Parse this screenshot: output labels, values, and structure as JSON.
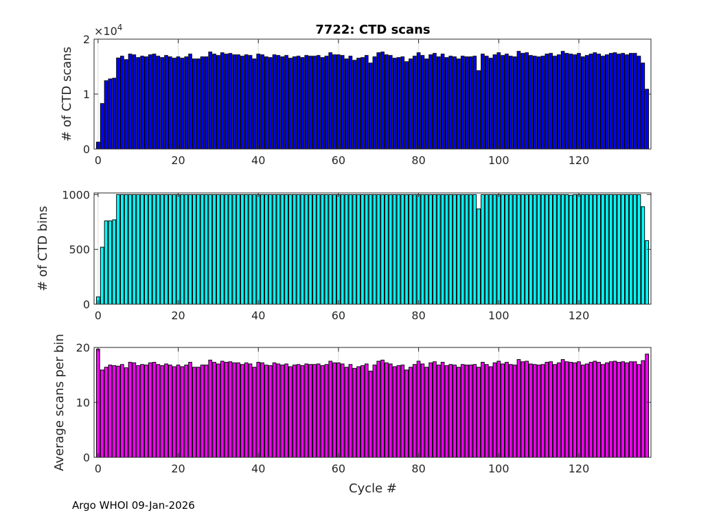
{
  "chart_data": [
    {
      "type": "bar",
      "title": "7722: CTD scans",
      "xlabel": "",
      "ylabel": "# of CTD scans",
      "y_exponent_label": "×10",
      "y_exponent": "4",
      "xlim": [
        -1,
        138
      ],
      "ylim": [
        0,
        20000
      ],
      "yticks": [
        0,
        10000,
        20000
      ],
      "ytick_labels": [
        "0",
        "1",
        "2"
      ],
      "xticks": [
        0,
        20,
        40,
        60,
        80,
        100,
        120
      ],
      "xtick_labels": [
        "0",
        "20",
        "40",
        "60",
        "80",
        "100",
        "120"
      ],
      "color": "#0000ff",
      "grid": true,
      "values": [
        1250,
        8280,
        12430,
        12760,
        12890,
        16570,
        16900,
        16280,
        17280,
        17150,
        16650,
        16900,
        16780,
        17150,
        17280,
        16900,
        16650,
        17030,
        16780,
        16530,
        16780,
        16530,
        16780,
        17280,
        16400,
        16400,
        16780,
        16780,
        17660,
        17280,
        17030,
        17530,
        17280,
        17400,
        17150,
        17150,
        16900,
        17150,
        17030,
        16400,
        17280,
        17150,
        16780,
        16650,
        17150,
        17030,
        16780,
        17030,
        16530,
        16780,
        16900,
        16650,
        17030,
        16900,
        16900,
        17030,
        16650,
        16900,
        17530,
        17150,
        17150,
        17030,
        16400,
        16900,
        16150,
        16530,
        16650,
        17030,
        15650,
        16780,
        17530,
        17660,
        17150,
        17030,
        16530,
        16650,
        16780,
        15900,
        16400,
        16900,
        17530,
        17030,
        16400,
        17150,
        17410,
        16780,
        17280,
        16650,
        16900,
        16780,
        16400,
        16900,
        16780,
        16780,
        16900,
        14270,
        17280,
        16900,
        16530,
        17150,
        17530,
        17030,
        17280,
        16900,
        16780,
        17780,
        17410,
        17530,
        17030,
        16900,
        16780,
        16900,
        17280,
        17410,
        16900,
        17150,
        17780,
        17410,
        17280,
        17150,
        17410,
        16780,
        17030,
        17280,
        17530,
        17280,
        16900,
        17150,
        17410,
        17530,
        17280,
        17410,
        17150,
        17410,
        17410,
        16900,
        15650,
        10880
      ]
    },
    {
      "type": "bar",
      "ylabel": "# of CTD bins",
      "xlim": [
        -1,
        138
      ],
      "ylim": [
        0,
        1015
      ],
      "yticks": [
        0,
        500,
        1000
      ],
      "ytick_labels": [
        "0",
        "500",
        "1000"
      ],
      "xticks": [
        0,
        20,
        40,
        60,
        80,
        100,
        120
      ],
      "xtick_labels": [
        "0",
        "20",
        "40",
        "60",
        "80",
        "100",
        "120"
      ],
      "color": "#00ffff",
      "grid": true,
      "values": [
        67,
        520,
        760,
        760,
        770,
        1000,
        1000,
        1000,
        1000,
        1000,
        1000,
        1000,
        1000,
        1000,
        1000,
        1000,
        1000,
        1000,
        1000,
        1000,
        1000,
        1000,
        1000,
        1000,
        1000,
        1000,
        1000,
        1000,
        1000,
        1000,
        1000,
        1000,
        1000,
        1000,
        1000,
        1000,
        1000,
        1000,
        1000,
        1000,
        1000,
        1000,
        1000,
        1000,
        1000,
        1000,
        1000,
        1000,
        1000,
        1000,
        1000,
        1000,
        1000,
        1000,
        1000,
        1000,
        1000,
        1000,
        1000,
        1000,
        1000,
        1000,
        1000,
        1000,
        1000,
        1000,
        1000,
        1000,
        1000,
        1000,
        1000,
        1000,
        1000,
        1000,
        1000,
        1000,
        1000,
        1000,
        1000,
        1000,
        1000,
        1000,
        1000,
        1000,
        1000,
        1000,
        1000,
        1000,
        1000,
        1000,
        1000,
        1000,
        1000,
        1000,
        1000,
        870,
        1000,
        1000,
        1000,
        1000,
        1000,
        1000,
        1000,
        1000,
        1000,
        1000,
        1000,
        1000,
        1000,
        1000,
        1000,
        1000,
        1000,
        1000,
        1000,
        1000,
        1000,
        1000,
        995,
        1000,
        1000,
        1000,
        1000,
        1000,
        1000,
        1000,
        1000,
        1000,
        1000,
        1000,
        1000,
        1000,
        1000,
        1000,
        1000,
        1000,
        890,
        580
      ]
    },
    {
      "type": "bar",
      "ylabel": "Average scans per bin",
      "xlabel": "Cycle #",
      "xlim": [
        -1,
        138
      ],
      "ylim": [
        0,
        20
      ],
      "yticks": [
        0,
        10,
        20
      ],
      "ytick_labels": [
        "0",
        "10",
        "20"
      ],
      "xticks": [
        0,
        20,
        40,
        60,
        80,
        100,
        120
      ],
      "xtick_labels": [
        "0",
        "20",
        "40",
        "60",
        "80",
        "100",
        "120"
      ],
      "color": "#ff00ff",
      "grid": true,
      "values": [
        19.7,
        15.9,
        16.4,
        16.8,
        16.7,
        16.6,
        16.9,
        16.3,
        17.3,
        17.2,
        16.7,
        16.9,
        16.8,
        17.2,
        17.3,
        16.9,
        16.7,
        17.0,
        16.8,
        16.5,
        16.8,
        16.5,
        16.8,
        17.3,
        16.4,
        16.4,
        16.8,
        16.8,
        17.7,
        17.3,
        17.0,
        17.5,
        17.3,
        17.4,
        17.2,
        17.2,
        16.9,
        17.2,
        17.0,
        16.4,
        17.3,
        17.2,
        16.8,
        16.7,
        17.2,
        17.0,
        16.8,
        17.0,
        16.5,
        16.8,
        16.9,
        16.7,
        17.0,
        16.9,
        16.9,
        17.0,
        16.7,
        16.9,
        17.5,
        17.2,
        17.2,
        17.0,
        16.4,
        16.9,
        16.2,
        16.5,
        16.7,
        17.0,
        15.7,
        16.8,
        17.5,
        17.7,
        17.2,
        17.0,
        16.5,
        16.7,
        16.8,
        15.9,
        16.4,
        16.9,
        17.5,
        17.0,
        16.4,
        17.2,
        17.4,
        16.8,
        17.3,
        16.7,
        16.9,
        16.8,
        16.4,
        16.9,
        16.8,
        16.8,
        16.9,
        16.4,
        17.3,
        16.9,
        16.5,
        17.2,
        17.5,
        17.0,
        17.3,
        16.9,
        16.8,
        17.8,
        17.4,
        17.5,
        17.0,
        16.9,
        16.8,
        16.9,
        17.3,
        17.4,
        16.9,
        17.2,
        17.8,
        17.4,
        17.3,
        17.2,
        17.4,
        16.8,
        17.0,
        17.3,
        17.5,
        17.3,
        16.9,
        17.2,
        17.4,
        17.5,
        17.3,
        17.4,
        17.2,
        17.4,
        17.4,
        16.9,
        17.6,
        18.8
      ]
    }
  ],
  "footer": "Argo WHOI 09-Jan-2026"
}
